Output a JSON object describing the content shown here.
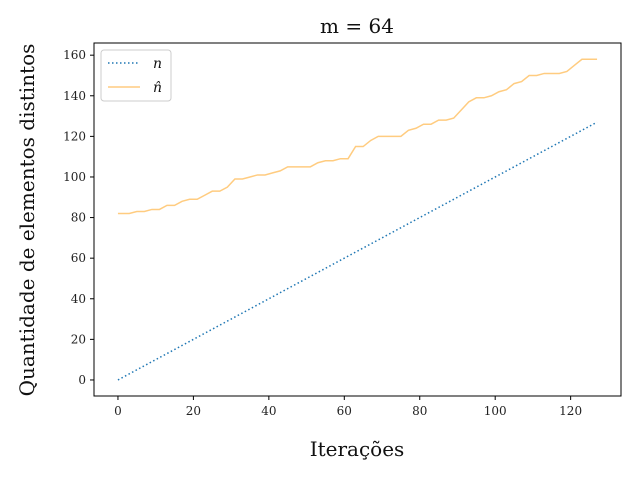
{
  "chart_data": {
    "type": "line",
    "title": "m = 64",
    "xlabel": "Iterações",
    "ylabel": "Quantidade de elementos distintos",
    "xlim": [
      -6.35,
      133.35
    ],
    "ylim": [
      -7.9,
      166.0
    ],
    "xticks": [
      0,
      20,
      40,
      60,
      80,
      100,
      120
    ],
    "yticks": [
      0,
      20,
      40,
      60,
      80,
      100,
      120,
      140,
      160
    ],
    "grid": false,
    "legend_position": "top-left",
    "series": [
      {
        "name": "n",
        "color": "#1f77b4",
        "style": "dotted",
        "x": [
          0,
          127
        ],
        "y": [
          0,
          127
        ]
      },
      {
        "name": "n̂",
        "color": "#ffcc80",
        "style": "solid",
        "x": [
          0,
          3,
          5,
          7,
          9,
          11,
          13,
          15,
          17,
          19,
          21,
          23,
          25,
          27,
          29,
          31,
          33,
          35,
          37,
          39,
          41,
          43,
          45,
          47,
          49,
          51,
          53,
          55,
          57,
          59,
          61,
          63,
          65,
          67,
          69,
          71,
          73,
          75,
          77,
          79,
          81,
          83,
          85,
          87,
          89,
          91,
          93,
          95,
          97,
          99,
          101,
          103,
          105,
          107,
          109,
          111,
          113,
          115,
          117,
          119,
          121,
          123,
          125,
          127
        ],
        "y": [
          82,
          82,
          83,
          83,
          84,
          84,
          86,
          86,
          88,
          89,
          89,
          91,
          93,
          93,
          95,
          99,
          99,
          100,
          101,
          101,
          102,
          103,
          105,
          105,
          105,
          105,
          107,
          108,
          108,
          109,
          109,
          115,
          115,
          118,
          120,
          120,
          120,
          120,
          123,
          124,
          126,
          126,
          128,
          128,
          129,
          133,
          137,
          139,
          139,
          140,
          142,
          143,
          146,
          147,
          150,
          150,
          151,
          151,
          151,
          152,
          155,
          158,
          158,
          158
        ]
      }
    ]
  }
}
